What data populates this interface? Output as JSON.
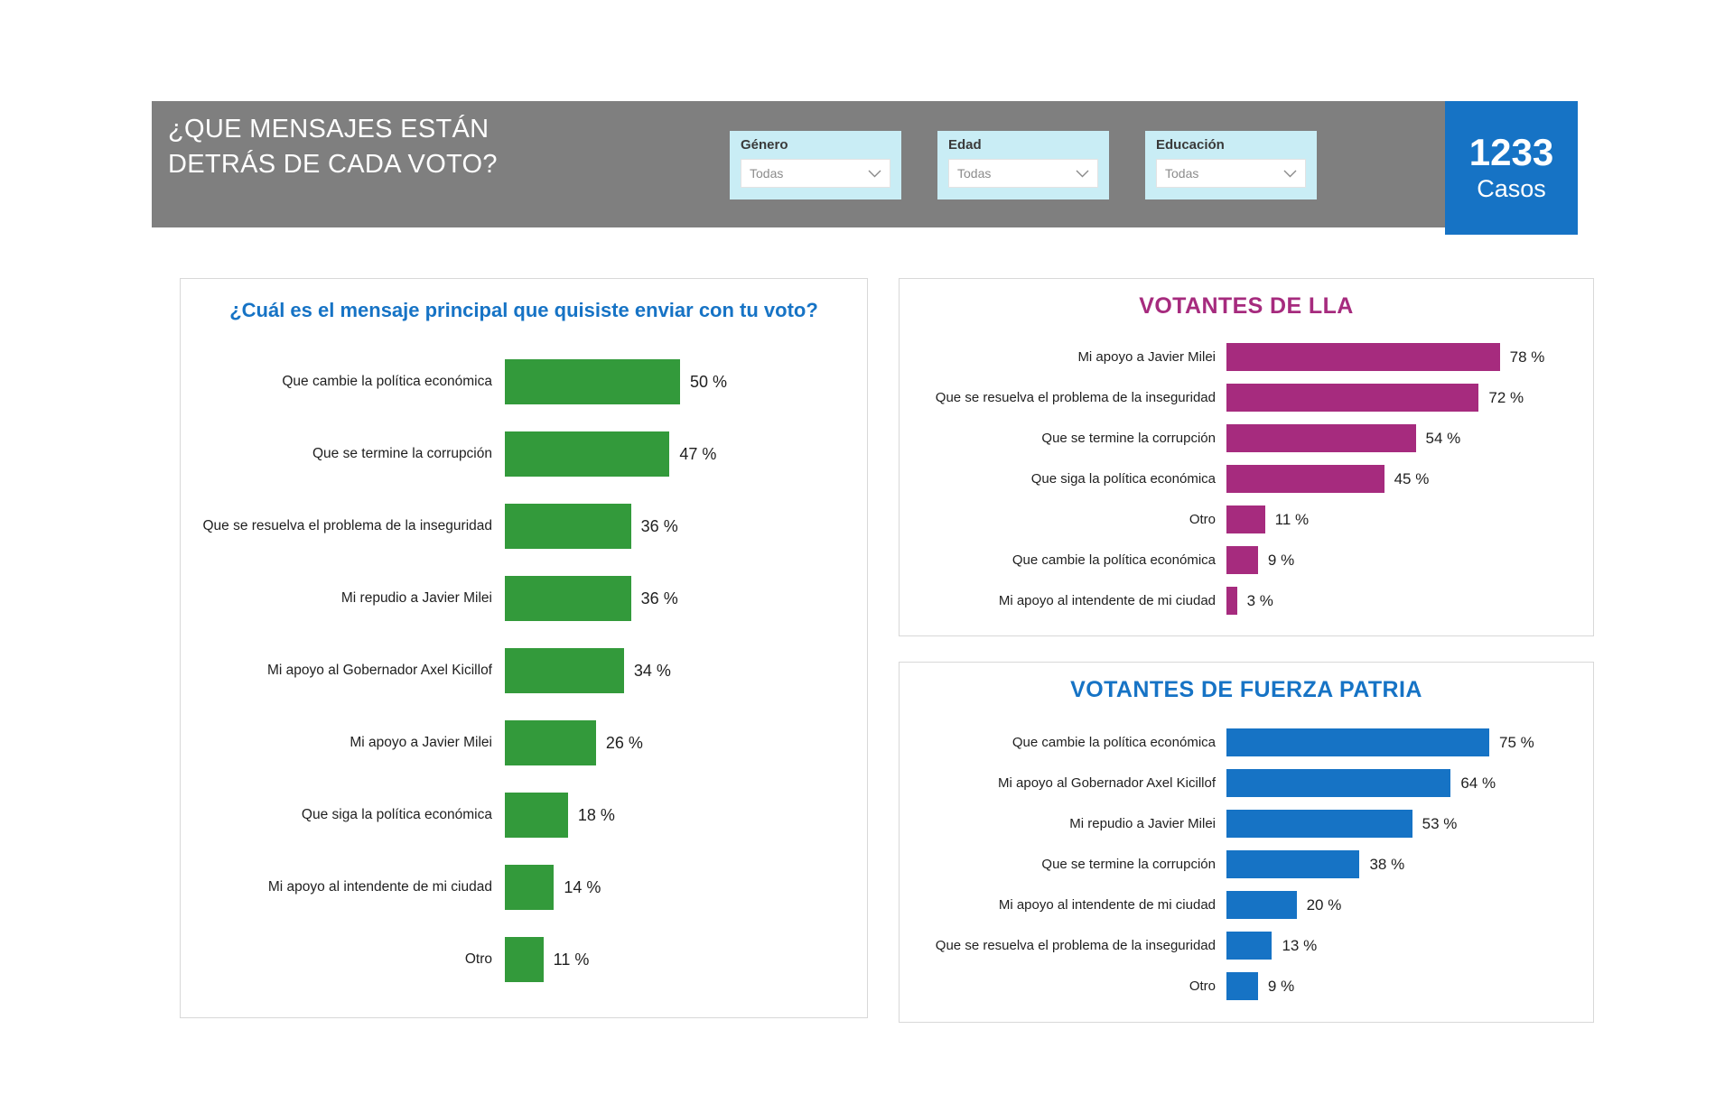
{
  "header": {
    "title_line1": "¿QUE MENSAJES ESTÁN",
    "title_line2": "DETRÁS DE CADA VOTO?",
    "background": "#7f7f7f",
    "filter_bg": "#c9edf5",
    "filters": [
      {
        "label": "Género",
        "value": "Todas"
      },
      {
        "label": "Edad",
        "value": "Todas"
      },
      {
        "label": "Educación",
        "value": "Todas"
      }
    ],
    "chevron_icon": "chevron-down"
  },
  "kpi": {
    "value": "1233",
    "label": "Casos",
    "background": "#1673c5"
  },
  "chart_data": [
    {
      "type": "bar",
      "orientation": "horizontal",
      "title": "¿Cuál es el mensaje principal que quisiste enviar con tu voto?",
      "title_color": "#1673c5",
      "bar_color": "#339a3b",
      "value_suffix": " %",
      "xlim": [
        0,
        100
      ],
      "grid": false,
      "categories": [
        "Que cambie la política económica",
        "Que se termine la corrupción",
        "Que se resuelva el problema de la inseguridad",
        "Mi repudio a Javier Milei",
        "Mi apoyo al Gobernador Axel Kicillof",
        "Mi apoyo a Javier Milei",
        "Que siga la política económica",
        "Mi apoyo al intendente de mi ciudad",
        "Otro"
      ],
      "values": [
        50,
        47,
        36,
        36,
        34,
        26,
        18,
        14,
        11
      ]
    },
    {
      "type": "bar",
      "orientation": "horizontal",
      "title": "VOTANTES DE LLA",
      "title_color": "#a62b7e",
      "bar_color": "#a62b7e",
      "value_suffix": " %",
      "xlim": [
        0,
        100
      ],
      "grid": false,
      "categories": [
        "Mi apoyo a Javier Milei",
        "Que se resuelva el problema de la inseguridad",
        "Que se termine la corrupción",
        "Que siga la política económica",
        "Otro",
        "Que cambie la política económica",
        "Mi apoyo al intendente de mi ciudad"
      ],
      "values": [
        78,
        72,
        54,
        45,
        11,
        9,
        3
      ]
    },
    {
      "type": "bar",
      "orientation": "horizontal",
      "title": "VOTANTES DE FUERZA PATRIA",
      "title_color": "#1673c5",
      "bar_color": "#1673c5",
      "value_suffix": " %",
      "xlim": [
        0,
        100
      ],
      "grid": false,
      "categories": [
        "Que cambie la política económica",
        "Mi apoyo al Gobernador Axel Kicillof",
        "Mi repudio a Javier Milei",
        "Que se termine la corrupción",
        "Mi apoyo al intendente de mi ciudad",
        "Que se resuelva el problema de la inseguridad",
        "Otro"
      ],
      "values": [
        75,
        64,
        53,
        38,
        20,
        13,
        9
      ]
    }
  ]
}
